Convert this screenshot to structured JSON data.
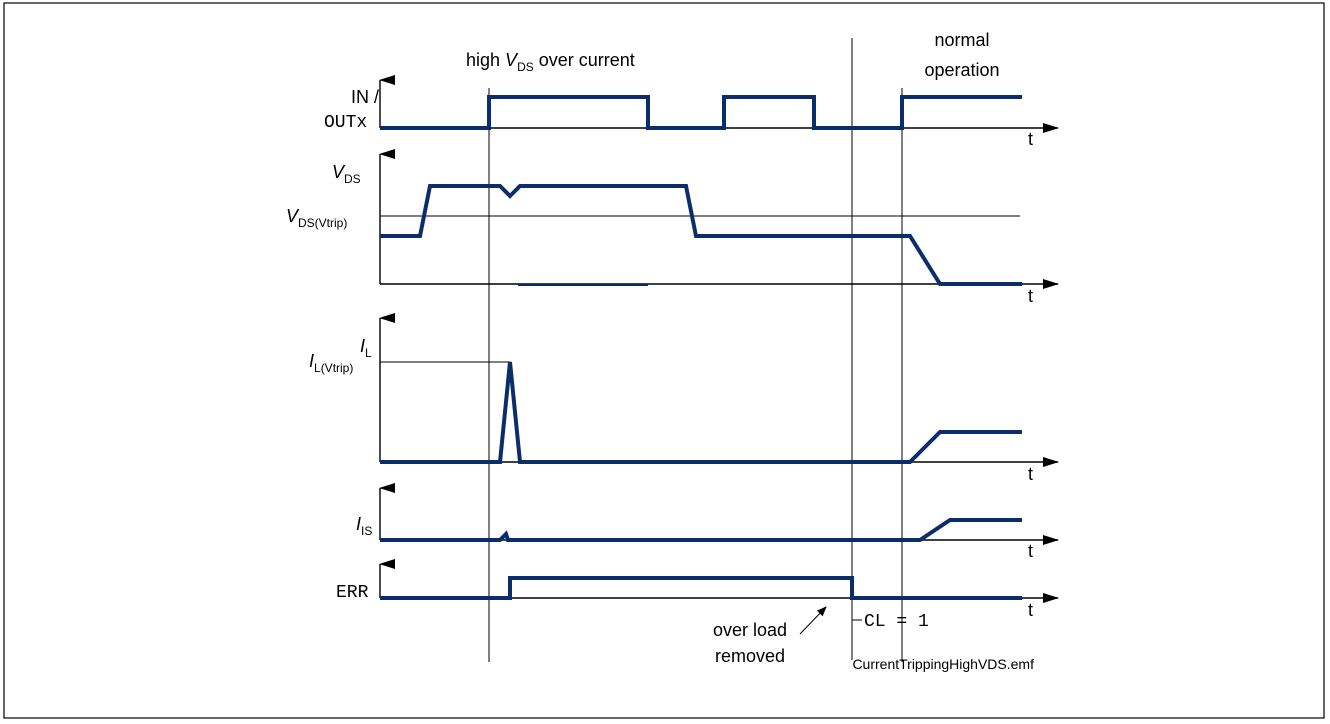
{
  "annotations": {
    "region_left_prefix": "high ",
    "region_left_var": "V",
    "region_left_sub": "DS",
    "region_left_suffix": " over current",
    "region_right_line1": "normal",
    "region_right_line2": "operation",
    "overload_line1": "over load",
    "overload_line2": "removed",
    "cl_label": "CL = 1",
    "filename": "CurrentTrippingHighVDS.emf"
  },
  "signals": {
    "in_out": {
      "label_top": "IN /",
      "label_bottom": "OUTx",
      "time_label": "t"
    },
    "vds": {
      "label_var": "V",
      "label_sub": "DS",
      "trip_var": "V",
      "trip_sub": "DS(Vtrip)",
      "time_label": "t"
    },
    "il": {
      "label_var": "I",
      "label_sub": "L",
      "trip_var": "I",
      "trip_sub": "L(Vtrip)",
      "time_label": "t"
    },
    "is": {
      "label_var": "I",
      "label_sub": "IS",
      "time_label": "t"
    },
    "err": {
      "label": "ERR",
      "time_label": "t"
    }
  },
  "colors": {
    "signal": "#0b2e6b",
    "axis": "#000000",
    "frame": "#000000"
  }
}
